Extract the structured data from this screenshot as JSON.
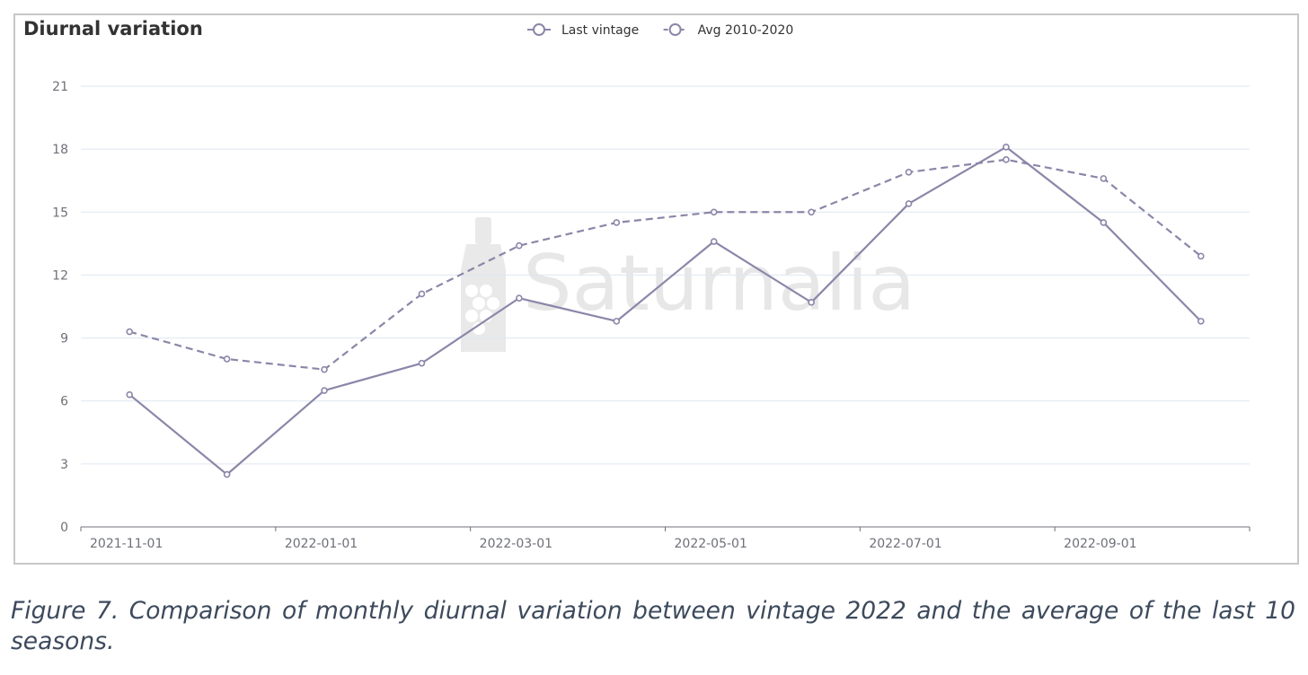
{
  "figure": {
    "caption": "Figure 7. Comparison of monthly diurnal variation between vintage 2022 and the average of the last 10 seasons."
  },
  "watermark": {
    "text": "Saturnalia",
    "icon": "wine-bottle-grapes-icon"
  },
  "chart_data": {
    "type": "line",
    "title": "Diurnal variation",
    "xlabel": "",
    "ylabel": "",
    "x": [
      "2021-11-01",
      "2021-12-01",
      "2022-01-01",
      "2022-02-01",
      "2022-03-01",
      "2022-04-01",
      "2022-05-01",
      "2022-06-01",
      "2022-07-01",
      "2022-08-01",
      "2022-09-01",
      "2022-10-01"
    ],
    "x_tick_labels": [
      "2021-11-01",
      "2022-01-01",
      "2022-03-01",
      "2022-05-01",
      "2022-07-01",
      "2022-09-01"
    ],
    "ylim": [
      0,
      21
    ],
    "y_ticks": [
      0,
      3,
      6,
      9,
      12,
      15,
      18,
      21
    ],
    "grid": true,
    "legend_position": "top-center",
    "series": [
      {
        "name": "Last vintage",
        "line_style": "solid",
        "color": "#8c86a8",
        "values": [
          6.3,
          2.5,
          6.5,
          7.8,
          10.9,
          9.8,
          13.6,
          10.7,
          15.4,
          18.1,
          14.5,
          9.8
        ]
      },
      {
        "name": "Avg 2010-2020",
        "line_style": "dashed",
        "color": "#8c86a8",
        "values": [
          9.3,
          8.0,
          7.5,
          11.1,
          13.4,
          14.5,
          15.0,
          15.0,
          16.9,
          17.5,
          16.6,
          12.9
        ]
      }
    ],
    "colors": {
      "grid": "#dde7f0",
      "axis": "#6e7079",
      "tick_label": "#6e7079"
    }
  }
}
